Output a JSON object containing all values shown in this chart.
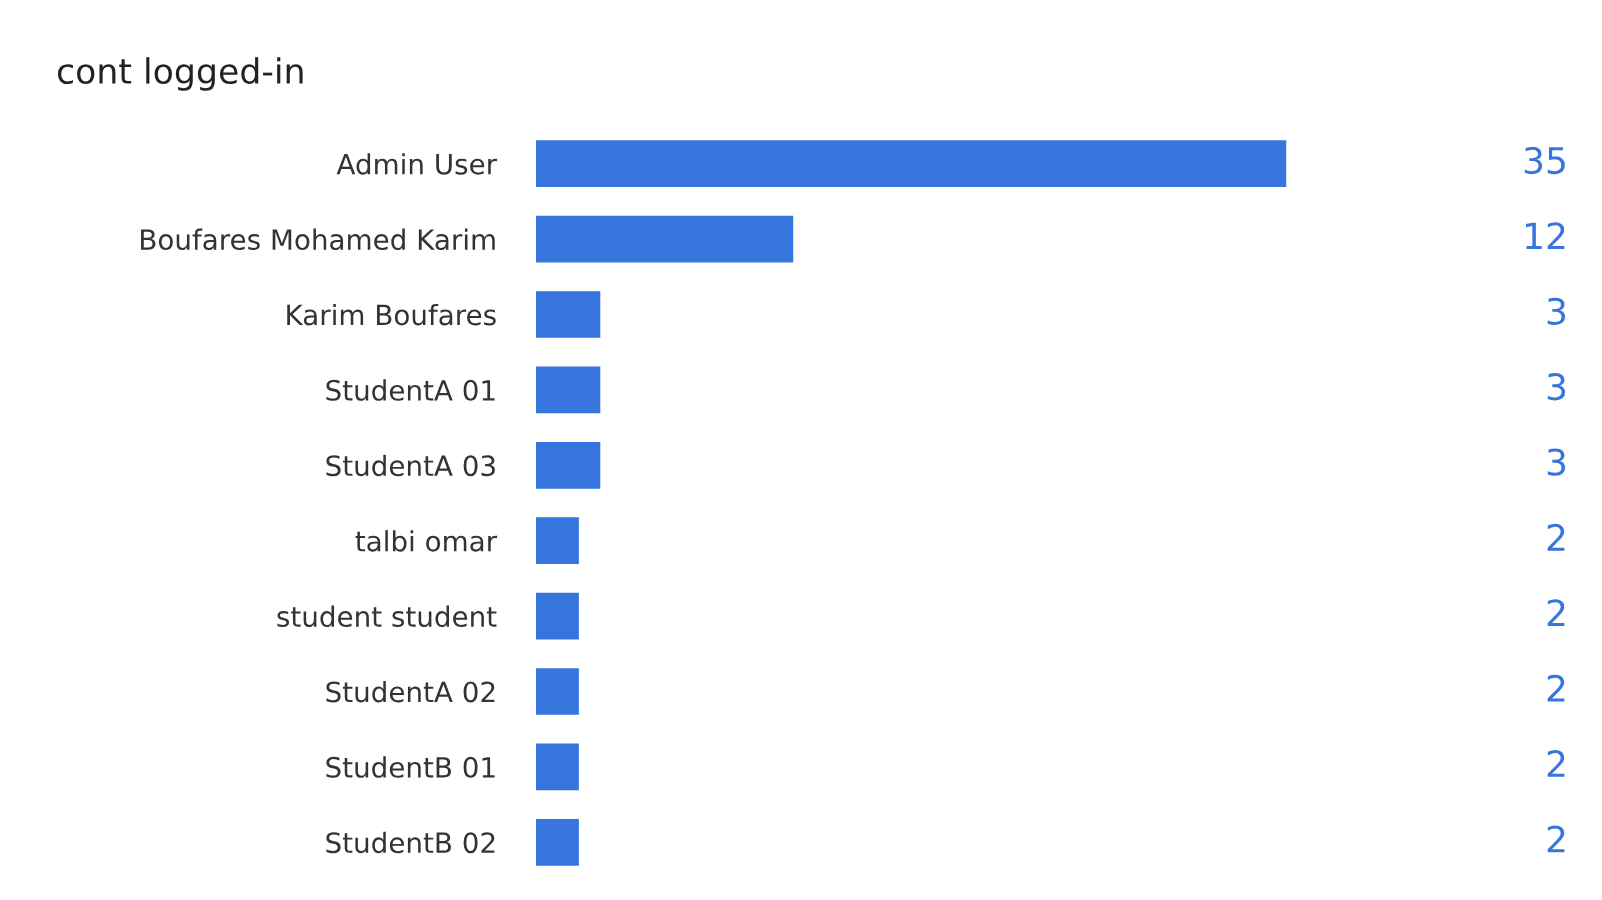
{
  "chart_data": {
    "type": "bar",
    "orientation": "horizontal",
    "title": "cont logged-in",
    "categories": [
      "Admin User",
      "Boufares Mohamed Karim",
      "Karim Boufares",
      "StudentA 01",
      "StudentA 03",
      "talbi omar",
      "student student",
      "StudentA 02",
      "StudentB 01",
      "StudentB 02"
    ],
    "values": [
      35,
      12,
      3,
      3,
      3,
      2,
      2,
      2,
      2,
      2
    ],
    "color": "#3575dc",
    "data_labels": true,
    "grid": false,
    "legend": false
  }
}
